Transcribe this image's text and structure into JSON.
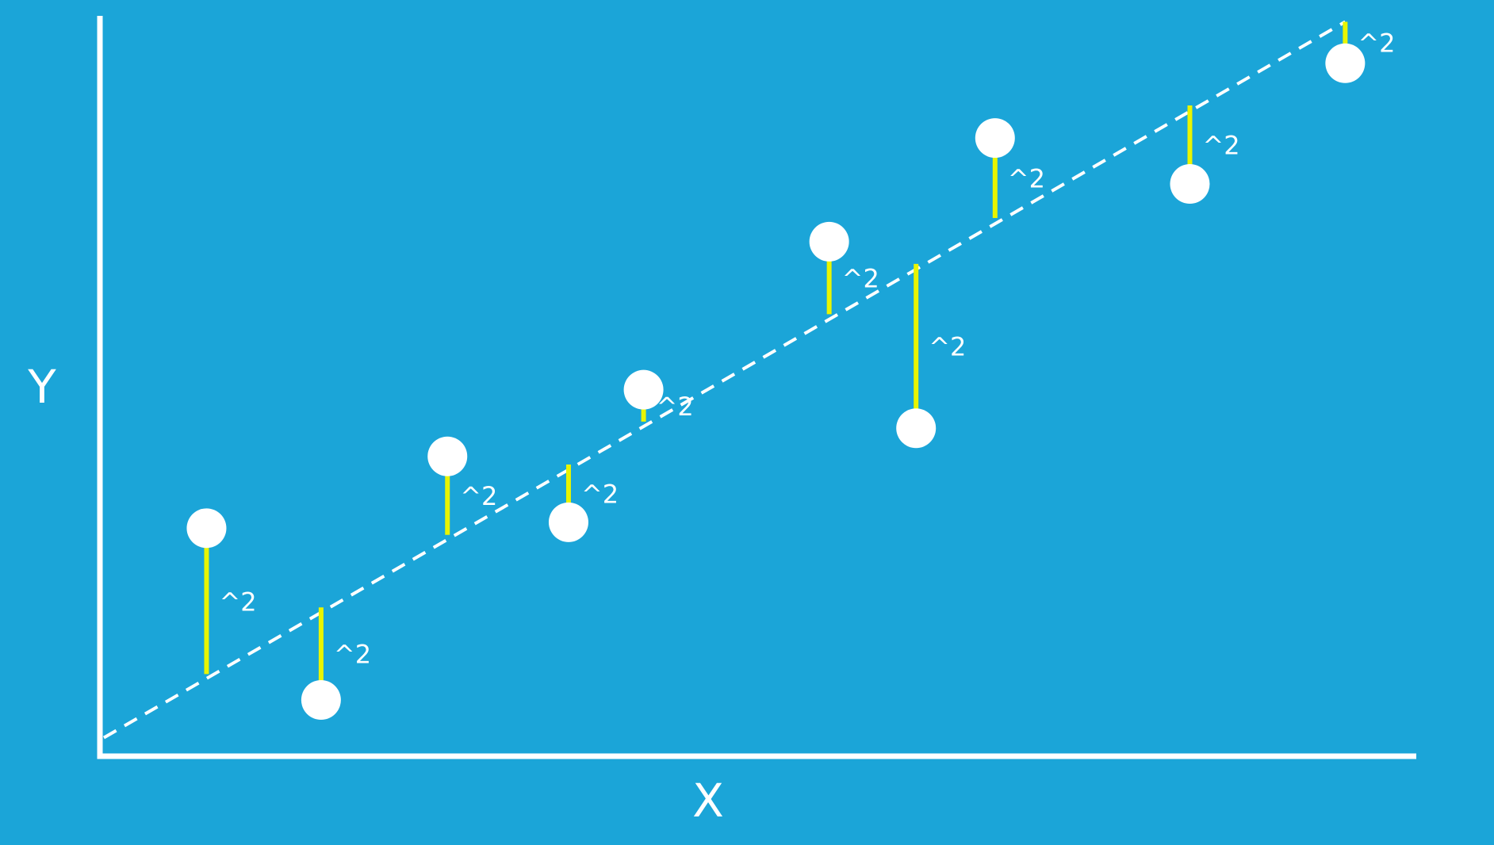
{
  "colors": {
    "background": "#1ba5d8",
    "axis": "#ffffff",
    "point": "#ffffff",
    "regression_line": "#ffffff",
    "residual": "#e8f500",
    "label": "#ffffff"
  },
  "chart_data": {
    "type": "scatter",
    "title": "",
    "xlabel": "X",
    "ylabel": "Y",
    "xlim": [
      0,
      100
    ],
    "ylim": [
      0,
      100
    ],
    "grid": false,
    "ticks": false,
    "regression_line": {
      "style": "dashed",
      "start": [
        0.3,
        2.5
      ],
      "end": [
        94.6,
        99.2
      ]
    },
    "residual_label": "^2",
    "points": [
      {
        "x": 8.1,
        "y": 30.8,
        "fit": 11.1
      },
      {
        "x": 16.8,
        "y": 7.6,
        "fit": 20.1
      },
      {
        "x": 26.4,
        "y": 40.5,
        "fit": 29.9
      },
      {
        "x": 35.6,
        "y": 31.6,
        "fit": 39.4
      },
      {
        "x": 41.3,
        "y": 49.5,
        "fit": 45.2
      },
      {
        "x": 55.4,
        "y": 69.5,
        "fit": 59.7
      },
      {
        "x": 62.0,
        "y": 44.3,
        "fit": 66.5
      },
      {
        "x": 68.0,
        "y": 83.5,
        "fit": 72.7
      },
      {
        "x": 82.8,
        "y": 77.3,
        "fit": 87.9
      },
      {
        "x": 94.6,
        "y": 93.6,
        "fit": 99.2
      }
    ]
  }
}
